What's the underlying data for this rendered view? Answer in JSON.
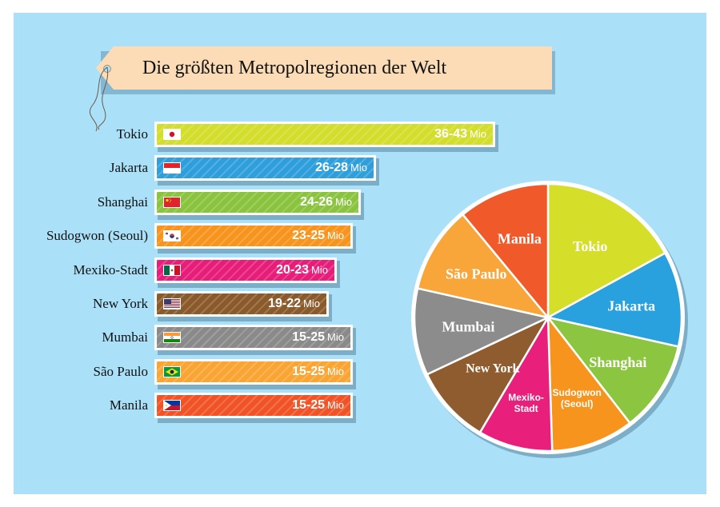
{
  "chart_data": {
    "type": "bar",
    "title": "Die größten Metropolregionen der Welt",
    "unit": "Mio",
    "xlim": [
      0,
      43
    ],
    "categories": [
      "Tokio",
      "Jakarta",
      "Shanghai",
      "Sudogwon (Seoul)",
      "Mexiko-Stadt",
      "New York",
      "Mumbai",
      "São Paulo",
      "Manila"
    ],
    "series": [
      {
        "range_labels": [
          "36-43",
          "26-28",
          "24-26",
          "23-25",
          "20-23",
          "19-22",
          "15-25",
          "15-25",
          "15-25"
        ],
        "min": [
          36,
          26,
          24,
          23,
          20,
          19,
          15,
          15,
          15
        ],
        "max": [
          43,
          28,
          26,
          25,
          23,
          22,
          25,
          25,
          25
        ],
        "bar_values": [
          43,
          28,
          26,
          25,
          23,
          22,
          25,
          25,
          25
        ]
      }
    ],
    "colors": [
      "#d2de2b",
      "#2e9fdb",
      "#8ac43f",
      "#f7941d",
      "#e61e7a",
      "#8b5a2b",
      "#8a8a8a",
      "#f9a534",
      "#ef5326"
    ],
    "flags": [
      "flag-japan-icon",
      "flag-indonesia-icon",
      "flag-china-icon",
      "flag-south-korea-icon",
      "flag-mexico-icon",
      "flag-usa-icon",
      "flag-india-icon",
      "flag-brazil-icon",
      "flag-philippines-icon"
    ],
    "pie": {
      "slice_labels": [
        "Tokio",
        "Jakarta",
        "Shanghai",
        "Sudogwon (Seoul)",
        "Mexiko-Stadt",
        "New York",
        "Mumbai",
        "São Paulo",
        "Manila"
      ],
      "values": [
        17,
        11.5,
        11,
        10,
        9,
        9.5,
        10.5,
        10.5,
        11
      ],
      "colors": [
        "#d5df29",
        "#29a1de",
        "#8cc540",
        "#f7941d",
        "#e8207c",
        "#8e5c2e",
        "#8c8c8c",
        "#f8a63a",
        "#f05a2a"
      ]
    }
  }
}
